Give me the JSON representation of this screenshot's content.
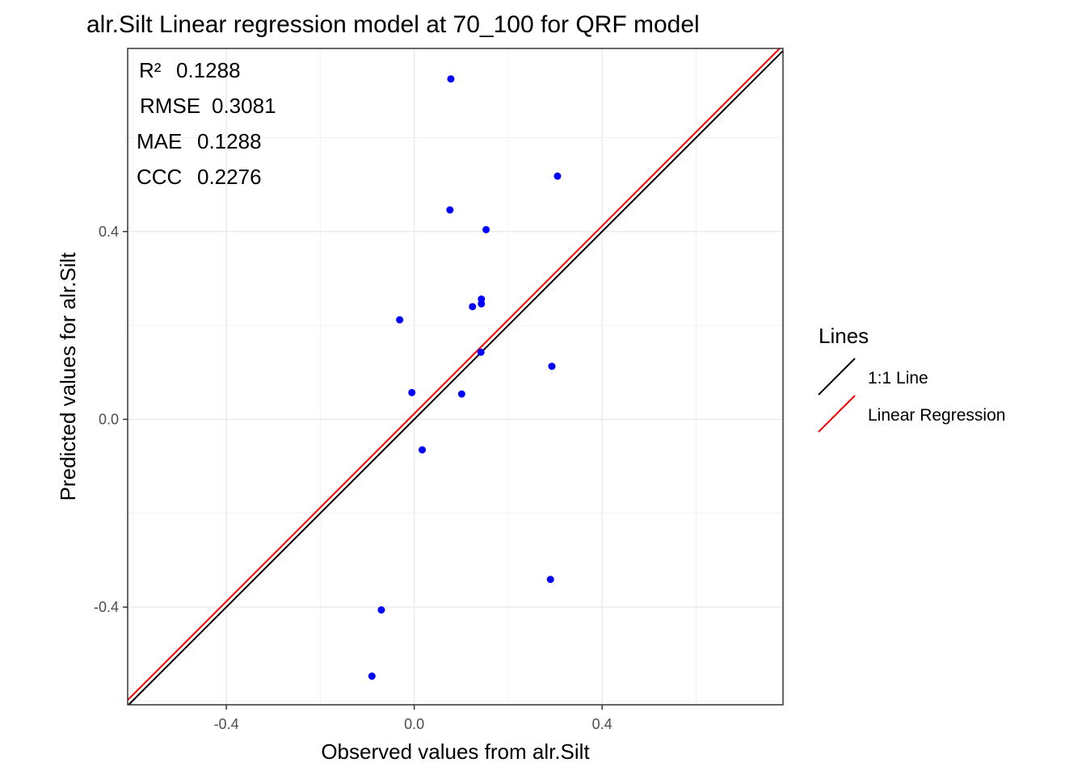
{
  "chart_data": {
    "type": "scatter",
    "title": "alr.Silt  Linear regression model at  70_100  for  QRF  model",
    "xlabel": "Observed values from alr.Silt",
    "ylabel": "Predicted values for alr.Silt",
    "xlim": [
      -0.61,
      0.785
    ],
    "ylim": [
      -0.608,
      0.79
    ],
    "ticks": [
      -0.4,
      0.0,
      0.4
    ],
    "tick_labels": [
      "-0.4",
      "0.0",
      "0.4"
    ],
    "grid": true,
    "point_color": "#0000ff",
    "points": [
      {
        "x": 0.078,
        "y": 0.725
      },
      {
        "x": 0.305,
        "y": 0.518
      },
      {
        "x": 0.076,
        "y": 0.446
      },
      {
        "x": 0.153,
        "y": 0.404
      },
      {
        "x": 0.143,
        "y": 0.256
      },
      {
        "x": 0.143,
        "y": 0.246
      },
      {
        "x": 0.124,
        "y": 0.24
      },
      {
        "x": -0.031,
        "y": 0.212
      },
      {
        "x": 0.142,
        "y": 0.143
      },
      {
        "x": 0.293,
        "y": 0.113
      },
      {
        "x": -0.005,
        "y": 0.057
      },
      {
        "x": 0.101,
        "y": 0.054
      },
      {
        "x": 0.017,
        "y": -0.065
      },
      {
        "x": 0.29,
        "y": -0.341
      },
      {
        "x": -0.07,
        "y": -0.406
      },
      {
        "x": -0.09,
        "y": -0.547
      }
    ],
    "lines": [
      {
        "name": "1:1 Line",
        "color": "#000000",
        "slope": 1.0,
        "intercept": 0.0
      },
      {
        "name": "Linear Regression",
        "color": "#ff0000",
        "slope": 1.0,
        "intercept": 0.012
      }
    ],
    "legend": {
      "title": "Lines",
      "position": "right",
      "items": [
        "1:1 Line",
        "Linear Regression"
      ]
    },
    "annotations": [
      {
        "label": "R²",
        "value": "0.1288"
      },
      {
        "label": "RMSE",
        "value": "0.3081"
      },
      {
        "label": "MAE",
        "value": "0.1288"
      },
      {
        "label": "CCC",
        "value": "0.2276"
      }
    ]
  }
}
